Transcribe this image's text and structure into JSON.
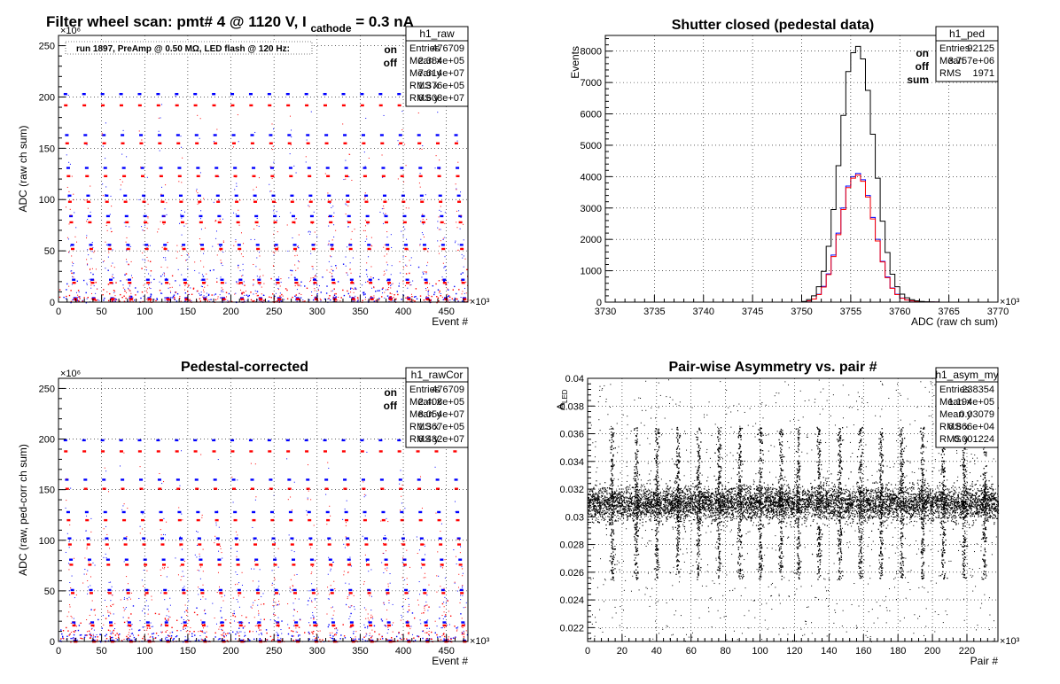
{
  "chart_data": [
    {
      "type": "scatter",
      "title": "Filter wheel scan: pmt#   4 @  1120 V, I",
      "title_sub": "cathode",
      "title_tail": "= 0.3 nA",
      "annotation": "run 1897, PreAmp @ 0.50 MΩ, LED flash @  120 Hz:",
      "xlabel": "Event #",
      "ylabel": "ADC (raw ch sum)",
      "x_exponent": "×10³",
      "y_exponent": "×10⁶",
      "xlim": [
        0,
        475
      ],
      "ylim": [
        0,
        260
      ],
      "xticks": [
        0,
        50,
        100,
        150,
        200,
        250,
        300,
        350,
        400,
        450
      ],
      "yticks": [
        0,
        50,
        100,
        150,
        200,
        250
      ],
      "grid": true,
      "legend_position": "top-right",
      "series": [
        {
          "name": "on",
          "color": "#0000ff",
          "levels": [
            203,
            163,
            131,
            104,
            84,
            56,
            22,
            4
          ]
        },
        {
          "name": "off",
          "color": "#ff0000",
          "levels": [
            192,
            155,
            123,
            98,
            78,
            52,
            19,
            3
          ]
        }
      ],
      "stats": {
        "name": "h1_raw",
        "rows": [
          [
            "Entries",
            "476709"
          ],
          [
            "Mean x",
            "2.384e+05"
          ],
          [
            "Mean y",
            "7.614e+07"
          ],
          [
            "RMS x",
            "1.376e+05"
          ],
          [
            "RMS y",
            "6.608e+07"
          ]
        ]
      }
    },
    {
      "type": "histogram",
      "title": "Shutter closed (pedestal data)",
      "xlabel": "ADC (raw ch sum)",
      "ylabel": "Events",
      "x_exponent": "×10³",
      "xlim": [
        3730,
        3770
      ],
      "ylim": [
        0,
        8500
      ],
      "xticks": [
        3730,
        3735,
        3740,
        3745,
        3750,
        3755,
        3760,
        3765,
        3770
      ],
      "yticks": [
        0,
        1000,
        2000,
        3000,
        4000,
        5000,
        6000,
        7000,
        8000
      ],
      "grid": true,
      "legend_position": "top-right",
      "bins": [
        3750,
        3750.5,
        3751,
        3751.5,
        3752,
        3752.5,
        3753,
        3753.5,
        3754,
        3754.5,
        3755,
        3755.5,
        3756,
        3756.5,
        3757,
        3757.5,
        3758,
        3758.5,
        3759,
        3759.5,
        3760,
        3760.5,
        3761,
        3761.5,
        3762,
        3762.5,
        3763,
        3763.5,
        3764
      ],
      "series": [
        {
          "name": "on",
          "color": "#0000ff",
          "values": [
            10,
            40,
            100,
            250,
            500,
            900,
            1500,
            2200,
            3000,
            3700,
            4000,
            4100,
            3900,
            3400,
            2700,
            2000,
            1300,
            800,
            450,
            250,
            130,
            70,
            40,
            20,
            10,
            5,
            3,
            2,
            0
          ]
        },
        {
          "name": "off",
          "color": "#ff0000",
          "values": [
            10,
            40,
            100,
            240,
            480,
            880,
            1450,
            2150,
            2950,
            3650,
            3950,
            4050,
            3850,
            3350,
            2650,
            1950,
            1280,
            780,
            440,
            240,
            125,
            68,
            38,
            20,
            10,
            5,
            3,
            2,
            0
          ]
        },
        {
          "name": "sum",
          "color": "#000000",
          "values": [
            20,
            80,
            200,
            490,
            980,
            1780,
            2950,
            4350,
            5950,
            7350,
            7950,
            8150,
            7750,
            6750,
            5350,
            3950,
            2580,
            1580,
            890,
            490,
            255,
            138,
            78,
            40,
            20,
            10,
            6,
            4,
            0
          ]
        }
      ],
      "stats": {
        "name": "h1_ped",
        "rows": [
          [
            "Entries",
            "92125"
          ],
          [
            "Mean",
            "3.757e+06"
          ],
          [
            "RMS",
            "1971"
          ]
        ]
      }
    },
    {
      "type": "scatter",
      "title": "Pedestal-corrected",
      "xlabel": "Event #",
      "ylabel": "ADC (raw, ped-corr ch sum)",
      "x_exponent": "×10³",
      "y_exponent": "×10⁶",
      "xlim": [
        0,
        475
      ],
      "ylim": [
        0,
        260
      ],
      "xticks": [
        0,
        50,
        100,
        150,
        200,
        250,
        300,
        350,
        400,
        450
      ],
      "yticks": [
        0,
        50,
        100,
        150,
        200,
        250
      ],
      "grid": true,
      "legend_position": "top-right",
      "series": [
        {
          "name": "on",
          "color": "#0000ff",
          "levels": [
            199,
            160,
            128,
            102,
            81,
            51,
            19,
            1
          ]
        },
        {
          "name": "off",
          "color": "#ff0000",
          "levels": [
            188,
            151,
            120,
            96,
            76,
            48,
            16,
            0
          ]
        }
      ],
      "stats": {
        "name": "h1_rawCor",
        "rows": [
          [
            "Entries",
            "476709"
          ],
          [
            "Mean x",
            "2.408e+05"
          ],
          [
            "Mean y",
            "8.054e+07"
          ],
          [
            "RMS x",
            "1.367e+05"
          ],
          [
            "RMS y",
            "6.482e+07"
          ]
        ]
      }
    },
    {
      "type": "scatter",
      "title": "Pair-wise Asymmetry vs. pair #",
      "xlabel": "Pair #",
      "ylabel": "A",
      "ylabel_sub": "LED",
      "x_exponent": "×10³",
      "xlim": [
        0,
        238
      ],
      "ylim": [
        0.021,
        0.04
      ],
      "xticks": [
        0,
        20,
        40,
        60,
        80,
        100,
        120,
        140,
        160,
        180,
        200,
        220
      ],
      "yticks": [
        0.022,
        0.024,
        0.026,
        0.028,
        0.03,
        0.032,
        0.034,
        0.036,
        0.038,
        0.04
      ],
      "grid": true,
      "band_center": 0.031,
      "band_halfwidth": 0.0012,
      "spike_positions": [
        14,
        28,
        40,
        52,
        64,
        76,
        88,
        100,
        112,
        122,
        134,
        146,
        158,
        170,
        182,
        194,
        206,
        218,
        230
      ],
      "stats": {
        "name": "h1_asym_my",
        "rows": [
          [
            "Entries",
            "238354"
          ],
          [
            "Mean x",
            "1.194e+05"
          ],
          [
            "Mean y",
            "0.03079"
          ],
          [
            "RMS x",
            "6.866e+04"
          ],
          [
            "RMS y",
            "0.001224"
          ]
        ]
      }
    }
  ]
}
